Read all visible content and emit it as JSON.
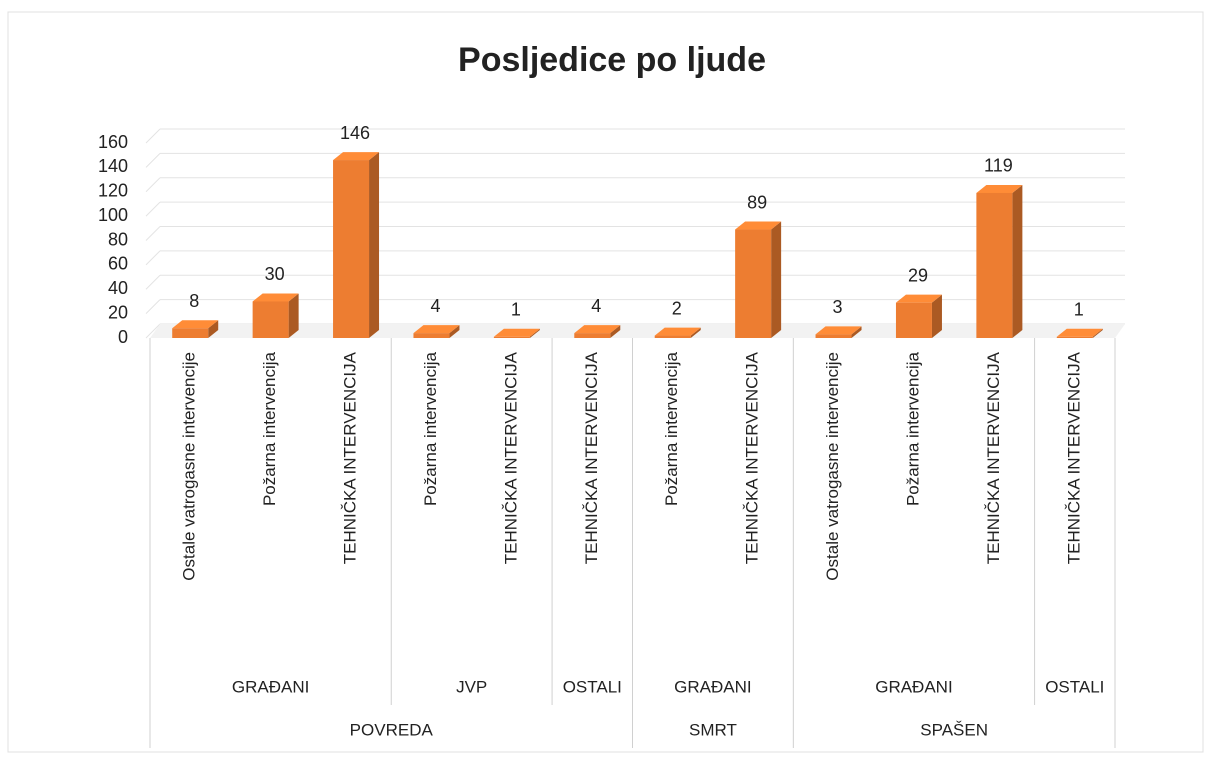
{
  "chart_data": {
    "type": "bar",
    "title": "Posljedice po ljude",
    "color": "#ed7d31",
    "ylim": [
      0,
      160
    ],
    "yticks": [
      0,
      20,
      40,
      60,
      80,
      100,
      120,
      140,
      160
    ],
    "grid": true,
    "groups": [
      {
        "name": "POVREDA",
        "groups": [
          {
            "name": "GRAĐANI",
            "categories": [
              "Ostale vatrogasne intervencije",
              "Požarna intervencija",
              "TEHNIČKA INTERVENCIJA"
            ],
            "values": [
              8,
              30,
              146
            ]
          },
          {
            "name": "JVP",
            "categories": [
              "Požarna intervencija",
              "TEHNIČKA INTERVENCIJA"
            ],
            "values": [
              4,
              1
            ]
          },
          {
            "name": "OSTALI",
            "categories": [
              "TEHNIČKA INTERVENCIJA"
            ],
            "values": [
              4
            ]
          }
        ]
      },
      {
        "name": "SMRT",
        "groups": [
          {
            "name": "GRAĐANI",
            "categories": [
              "Požarna intervencija",
              "TEHNIČKA INTERVENCIJA"
            ],
            "values": [
              2,
              89
            ]
          }
        ]
      },
      {
        "name": "SPAŠEN",
        "groups": [
          {
            "name": "GRAĐANI",
            "categories": [
              "Ostale vatrogasne intervencije",
              "Požarna intervencija",
              "TEHNIČKA INTERVENCIJA"
            ],
            "values": [
              3,
              29,
              119
            ]
          },
          {
            "name": "OSTALI",
            "categories": [
              "TEHNIČKA INTERVENCIJA"
            ],
            "values": [
              1
            ]
          }
        ]
      }
    ]
  }
}
